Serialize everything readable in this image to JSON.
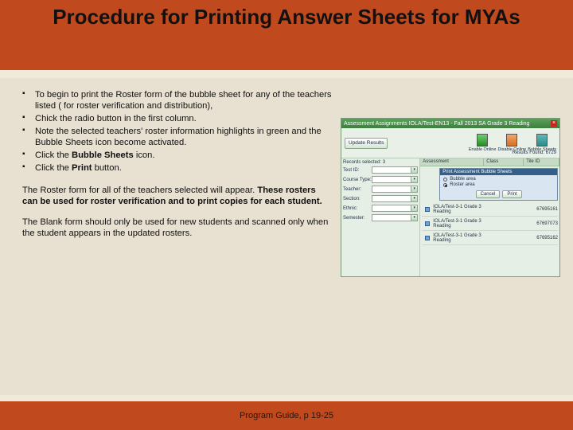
{
  "title": "Procedure for Printing Answer Sheets for MYAs",
  "bullets": [
    {
      "pre": "To begin to print the Roster form of the bubble sheet for any of the teachers listed ( for roster verification and distribution),"
    },
    {
      "pre": "Chick the radio button in the first column."
    },
    {
      "pre": "Note the selected teachers' roster information highlights in green and the Bubble Sheets icon become activated."
    },
    {
      "pre": "Click the ",
      "bold": "Bubble Sheets",
      "post": " icon."
    },
    {
      "pre": "Click the ",
      "bold": "Print",
      "post": " button."
    }
  ],
  "para1": {
    "pre": "The Roster form for all of the teachers selected will appear. ",
    "bold": "These rosters can be used for roster verification and to print copies for each student."
  },
  "para2": {
    "text": "The Blank form should only be used for new students and scanned only when the student appears in the updated rosters."
  },
  "footer": "Program Guide, p 19-25",
  "screenshot": {
    "titlebar": "Assessment Assignments  IOLA/Test-EN13 - Fall 2013 SA Grade 3 Reading",
    "toolbar_btn": "Update Results",
    "icons": [
      {
        "label": "Enable\nOnline",
        "color": "ico-green"
      },
      {
        "label": "Disable\nOnline",
        "color": "ico-orange"
      },
      {
        "label": "Bubble\nSheets",
        "color": "ico-teal"
      }
    ],
    "results_found": "Results Found: 6729",
    "records_selected": "Records selected: 3",
    "left_fields": [
      "Test ID:",
      "Course Type:",
      "Teacher:",
      "Section:",
      "Ethnic:",
      "Semester:"
    ],
    "grid_headers": [
      "Assessment",
      "Class",
      "Tile ID"
    ],
    "sub_header": "Print Assessment Bubble Sheets",
    "sub_opts": [
      "Bubble area",
      "Roster area"
    ],
    "sub_actions": [
      "Cancel",
      "Print"
    ],
    "rows": [
      {
        "name": "IOLA/Test-3-1\nGrade 3 Reading",
        "id": "67695161"
      },
      {
        "name": "IOLA/Test-3-1\nGrade 3 Reading",
        "id": "67697073"
      },
      {
        "name": "IOLA/Test-3-1\nGrade 3 Reading",
        "id": "67695162"
      }
    ]
  }
}
